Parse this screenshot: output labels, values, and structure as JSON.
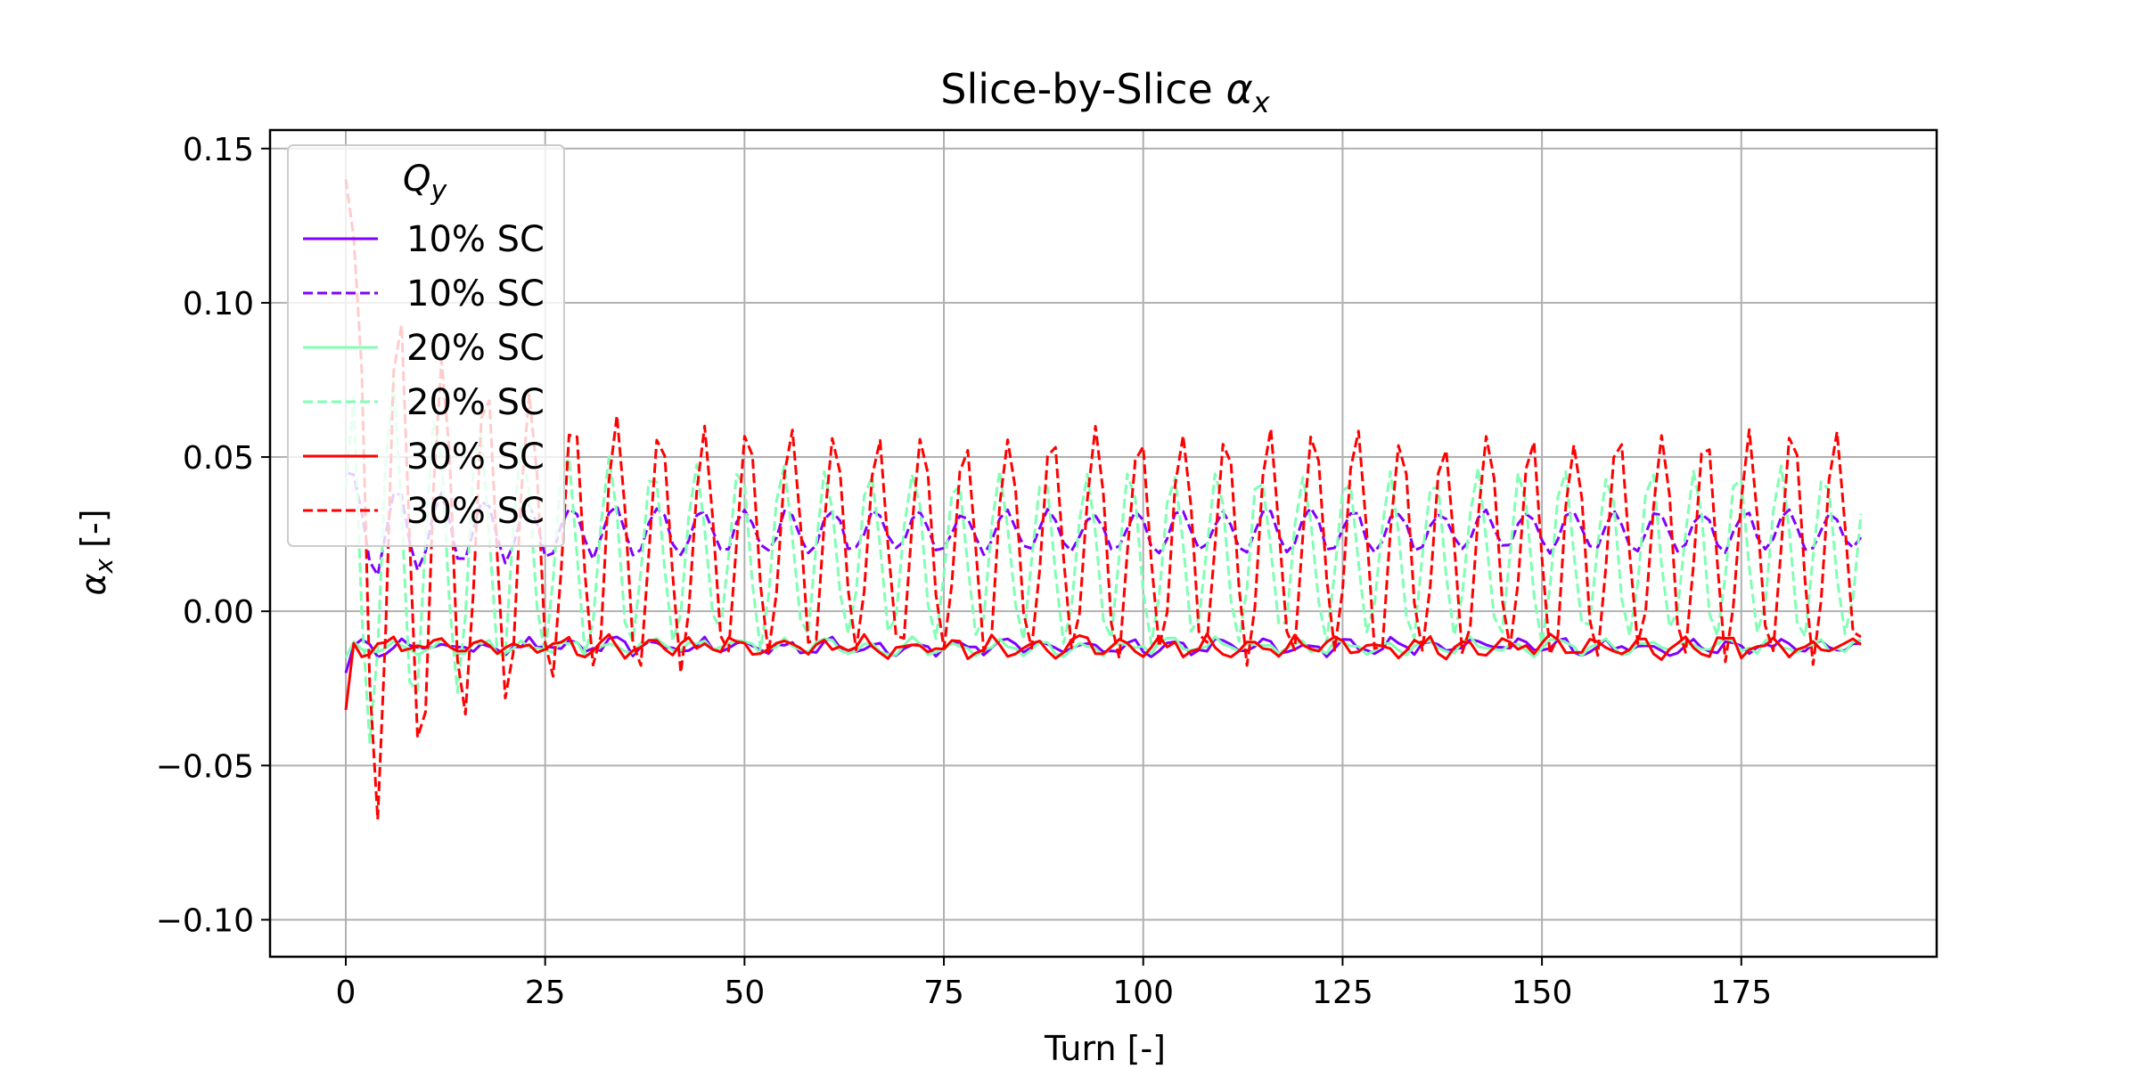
{
  "chart_data": {
    "type": "line",
    "title_prefix": "Slice-by-Slice ",
    "title_symbol": "α",
    "title_subscript": "x",
    "xlabel": "Turn [-]",
    "ylabel_symbol": "α",
    "ylabel_subscript": "x",
    "ylabel_suffix": " [-]",
    "xlim": [
      -9.5,
      199.5
    ],
    "ylim": [
      -0.112,
      0.156
    ],
    "xticks": [
      0,
      25,
      50,
      75,
      100,
      125,
      150,
      175
    ],
    "xtick_labels": [
      "0",
      "25",
      "50",
      "75",
      "100",
      "125",
      "150",
      "175"
    ],
    "yticks": [
      -0.1,
      -0.05,
      0.0,
      0.05,
      0.1,
      0.15
    ],
    "ytick_labels": [
      "−0.10",
      "−0.05",
      "0.00",
      "0.05",
      "0.10",
      "0.15"
    ],
    "grid": true,
    "legend": {
      "placement": "upper-left",
      "title_symbol": "Q",
      "title_subscript": "y"
    },
    "series": [
      {
        "name": "10% SC",
        "color": "#8000ff",
        "dash": "solid",
        "model": {
          "start": -0.02,
          "base": -0.0115,
          "amp": 0.0018,
          "period": 5.4,
          "phase": 0.0,
          "decay": 0,
          "noise": 0.0016
        }
      },
      {
        "name": "10% SC",
        "color": "#8000ff",
        "dash": "dashed",
        "model": {
          "start": 0.045,
          "base": 0.026,
          "amp": 0.0065,
          "period": 5.45,
          "phase": 0.4,
          "decay": 0.012,
          "decayRate": 15,
          "noise": 0.0012
        }
      },
      {
        "name": "20% SC",
        "color": "#80ffb4",
        "dash": "solid",
        "model": {
          "start": -0.015,
          "base": -0.0115,
          "amp": 0.0018,
          "period": 5.4,
          "phase": 0.7,
          "decay": 0,
          "noise": 0.0016
        }
      },
      {
        "name": "20% SC",
        "color": "#80ffb4",
        "dash": "dashed",
        "model": {
          "start": 0.04,
          "base": 0.018,
          "amp": 0.027,
          "period": 5.44,
          "phase": 1.1,
          "decay": 0.045,
          "decayRate": 14,
          "noise": 0.0025
        }
      },
      {
        "name": "30% SC",
        "color": "#ff0000",
        "dash": "solid",
        "model": {
          "start": -0.032,
          "base": -0.0115,
          "amp": 0.0022,
          "period": 5.4,
          "phase": 1.4,
          "decay": 0,
          "noise": 0.0022
        }
      },
      {
        "name": "30% SC",
        "color": "#ff0000",
        "dash": "dashed",
        "model": {
          "start": 0.14,
          "base": 0.021,
          "amp": 0.036,
          "period": 5.46,
          "phase": 0.2,
          "decay": 0.07,
          "decayRate": 13,
          "noise": 0.003
        }
      }
    ],
    "turns": 191
  }
}
